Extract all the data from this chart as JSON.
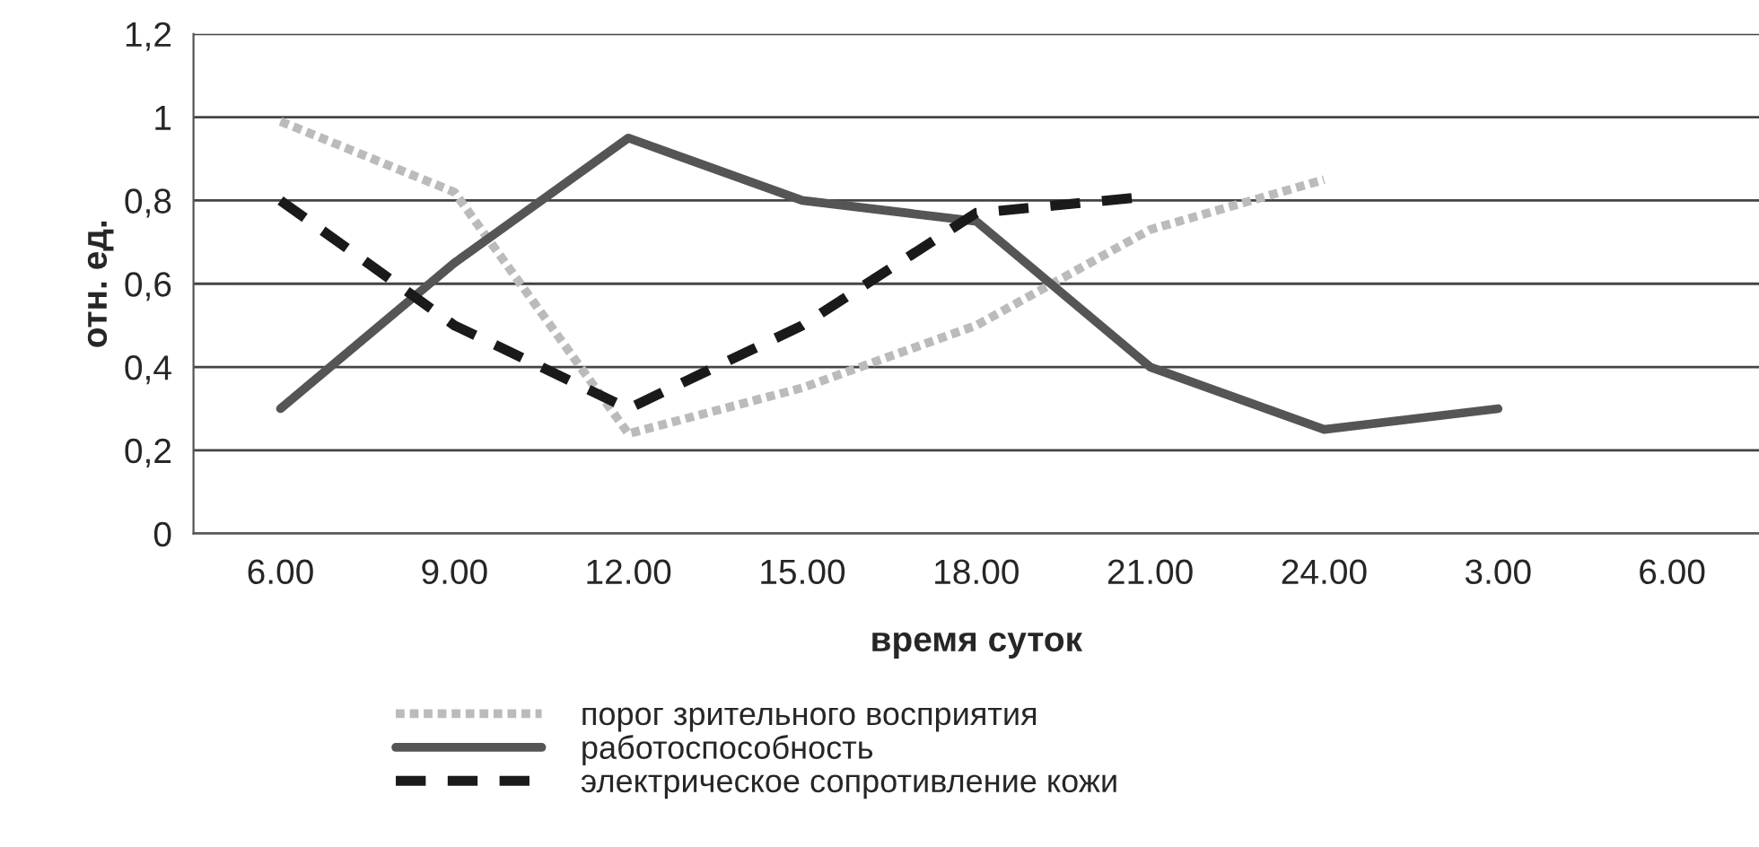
{
  "chart_data": {
    "type": "line",
    "xlabel": "время суток",
    "ylabel": "отн. ед.",
    "categories": [
      "6.00",
      "9.00",
      "12.00",
      "15.00",
      "18.00",
      "21.00",
      "24.00",
      "3.00",
      "6.00"
    ],
    "series": [
      {
        "name": "порог зрительного восприятия",
        "color": "#bbbbbb",
        "line_style": "dotted",
        "values": [
          0.99,
          0.82,
          0.24,
          0.35,
          0.5,
          0.73,
          0.85,
          null,
          null
        ]
      },
      {
        "name": "работоспособность",
        "color": "#555555",
        "line_style": "solid",
        "values": [
          0.3,
          0.65,
          0.95,
          0.8,
          0.75,
          0.4,
          0.25,
          0.3,
          null
        ]
      },
      {
        "name": "электрическое сопротивление кожи",
        "color": "#1a1a1a",
        "line_style": "dashed",
        "values": [
          0.8,
          0.5,
          0.3,
          0.5,
          0.77,
          0.81,
          null,
          null,
          null
        ]
      }
    ],
    "ylim": [
      0,
      1.2
    ],
    "yticks": [
      0,
      {
        "value": 0.2,
        "label": "0,2"
      },
      {
        "value": 0.4,
        "label": "0,4"
      },
      {
        "value": 0.6,
        "label": "0,6"
      },
      {
        "value": 0.8,
        "label": "0,8"
      },
      1,
      {
        "value": 1.2,
        "label": "1,2"
      }
    ],
    "grid": "y",
    "legend": "bottom",
    "marker": "none"
  }
}
